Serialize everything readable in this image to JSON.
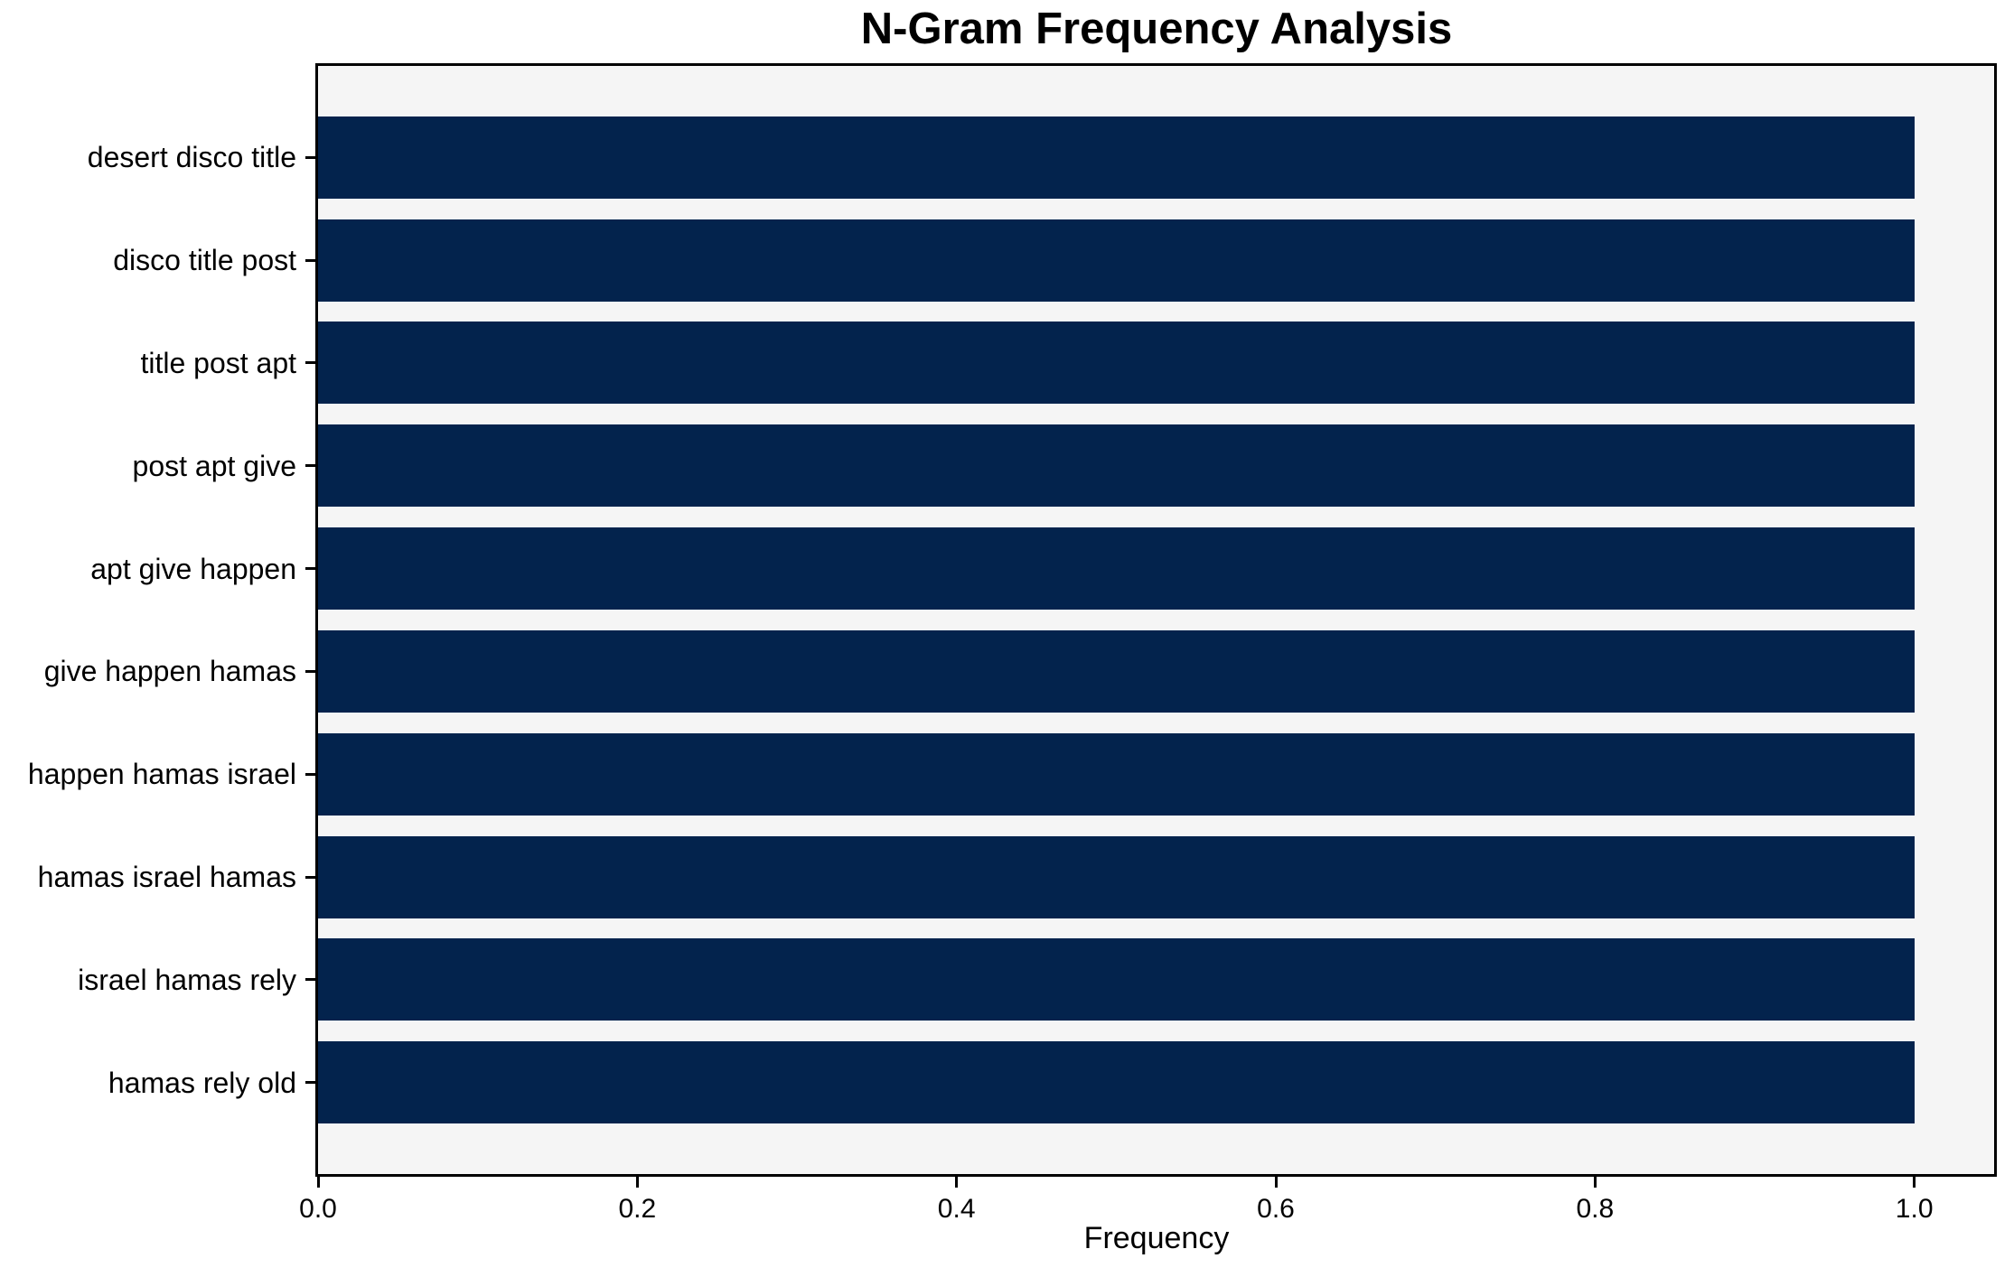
{
  "title": "N-Gram Frequency Analysis",
  "chart_data": {
    "type": "bar",
    "orientation": "horizontal",
    "title": "N-Gram Frequency Analysis",
    "xlabel": "Frequency",
    "ylabel": "",
    "categories": [
      "desert disco title",
      "disco title post",
      "title post apt",
      "post apt give",
      "apt give happen",
      "give happen hamas",
      "happen hamas israel",
      "hamas israel hamas",
      "israel hamas rely",
      "hamas rely old"
    ],
    "values": [
      1.0,
      1.0,
      1.0,
      1.0,
      1.0,
      1.0,
      1.0,
      1.0,
      1.0,
      1.0
    ],
    "xlim": [
      0,
      1.05
    ],
    "xticks": {
      "values": [
        0.0,
        0.2,
        0.4,
        0.6,
        0.8,
        1.0
      ],
      "labels": [
        "0.0",
        "0.2",
        "0.4",
        "0.6",
        "0.8",
        "1.0"
      ]
    },
    "grid": false,
    "legend": "none",
    "bar_height_fraction": 0.8,
    "colors": {
      "bar": "#03234d",
      "plot_background": "#f5f5f5",
      "figure_background": "#ffffff",
      "spine": "#000000",
      "text": "#000000"
    }
  }
}
